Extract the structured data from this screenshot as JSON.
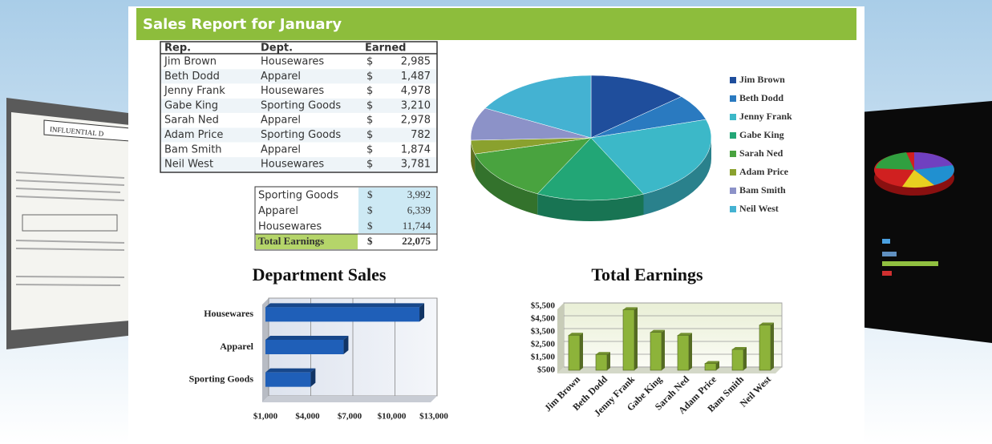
{
  "header": {
    "title": "Sales Report for January"
  },
  "left_doc_heading": "INFLUENTIAL D",
  "table": {
    "columns": [
      "Rep.",
      "Dept.",
      "Earned"
    ],
    "rows": [
      [
        "Jim Brown",
        "Housewares",
        "$",
        "2,985"
      ],
      [
        "Beth Dodd",
        "Apparel",
        "$",
        "1,487"
      ],
      [
        "Jenny Frank",
        "Housewares",
        "$",
        "4,978"
      ],
      [
        "Gabe King",
        "Sporting Goods",
        "$",
        "3,210"
      ],
      [
        "Sarah Ned",
        "Apparel",
        "$",
        "2,978"
      ],
      [
        "Adam Price",
        "Sporting Goods",
        "$",
        "782"
      ],
      [
        "Bam Smith",
        "Apparel",
        "$",
        "1,874"
      ],
      [
        "Neil West",
        "Housewares",
        "$",
        "3,781"
      ]
    ]
  },
  "summary": {
    "rows": [
      [
        "Sporting Goods",
        "$",
        "3,992"
      ],
      [
        "Apparel",
        "$",
        "6,339"
      ],
      [
        "Housewares",
        "$",
        "11,744"
      ]
    ],
    "total": [
      "Total Earnings",
      "$",
      "22,075"
    ]
  },
  "chart_data": [
    {
      "type": "pie",
      "categories": [
        "Jim Brown",
        "Beth Dodd",
        "Jenny Frank",
        "Gabe King",
        "Sarah Ned",
        "Adam Price",
        "Bam Smith",
        "Neil West"
      ],
      "values": [
        2985,
        1487,
        4978,
        3210,
        2978,
        782,
        1874,
        3781
      ],
      "colors": [
        "#1f4e9c",
        "#2a7ac0",
        "#3cb8c8",
        "#22a676",
        "#49a33f",
        "#8aa12e",
        "#8c92c8",
        "#44b2d2"
      ]
    },
    {
      "type": "hbar",
      "title": "Department Sales",
      "categories": [
        "Sporting Goods",
        "Apparel",
        "Housewares"
      ],
      "values": [
        3992,
        6339,
        11744
      ],
      "color": "#1f5fb8",
      "xlim": [
        1000,
        13000
      ],
      "xticks": [
        {
          "value": 1000,
          "label": "$1,000"
        },
        {
          "value": 4000,
          "label": "$4,000"
        },
        {
          "value": 7000,
          "label": "$7,000"
        },
        {
          "value": 10000,
          "label": "$10,000"
        },
        {
          "value": 13000,
          "label": "$13,000"
        }
      ],
      "grid": true
    },
    {
      "type": "column",
      "title": "Total Earnings",
      "categories": [
        "Jim Brown",
        "Beth Dodd",
        "Jenny Frank",
        "Gabe King",
        "Sarah Ned",
        "Adam Price",
        "Bam Smith",
        "Neil West"
      ],
      "values": [
        2985,
        1487,
        4978,
        3210,
        2978,
        782,
        1874,
        3781
      ],
      "color": "#8db33a",
      "ylim": [
        500,
        5500
      ],
      "yticks": [
        {
          "value": 500,
          "label": "$500"
        },
        {
          "value": 1500,
          "label": "$1,500"
        },
        {
          "value": 2500,
          "label": "$2,500"
        },
        {
          "value": 3500,
          "label": "$3,500"
        },
        {
          "value": 4500,
          "label": "$4,500"
        },
        {
          "value": 5500,
          "label": "$5,500"
        }
      ],
      "grid": true
    }
  ]
}
